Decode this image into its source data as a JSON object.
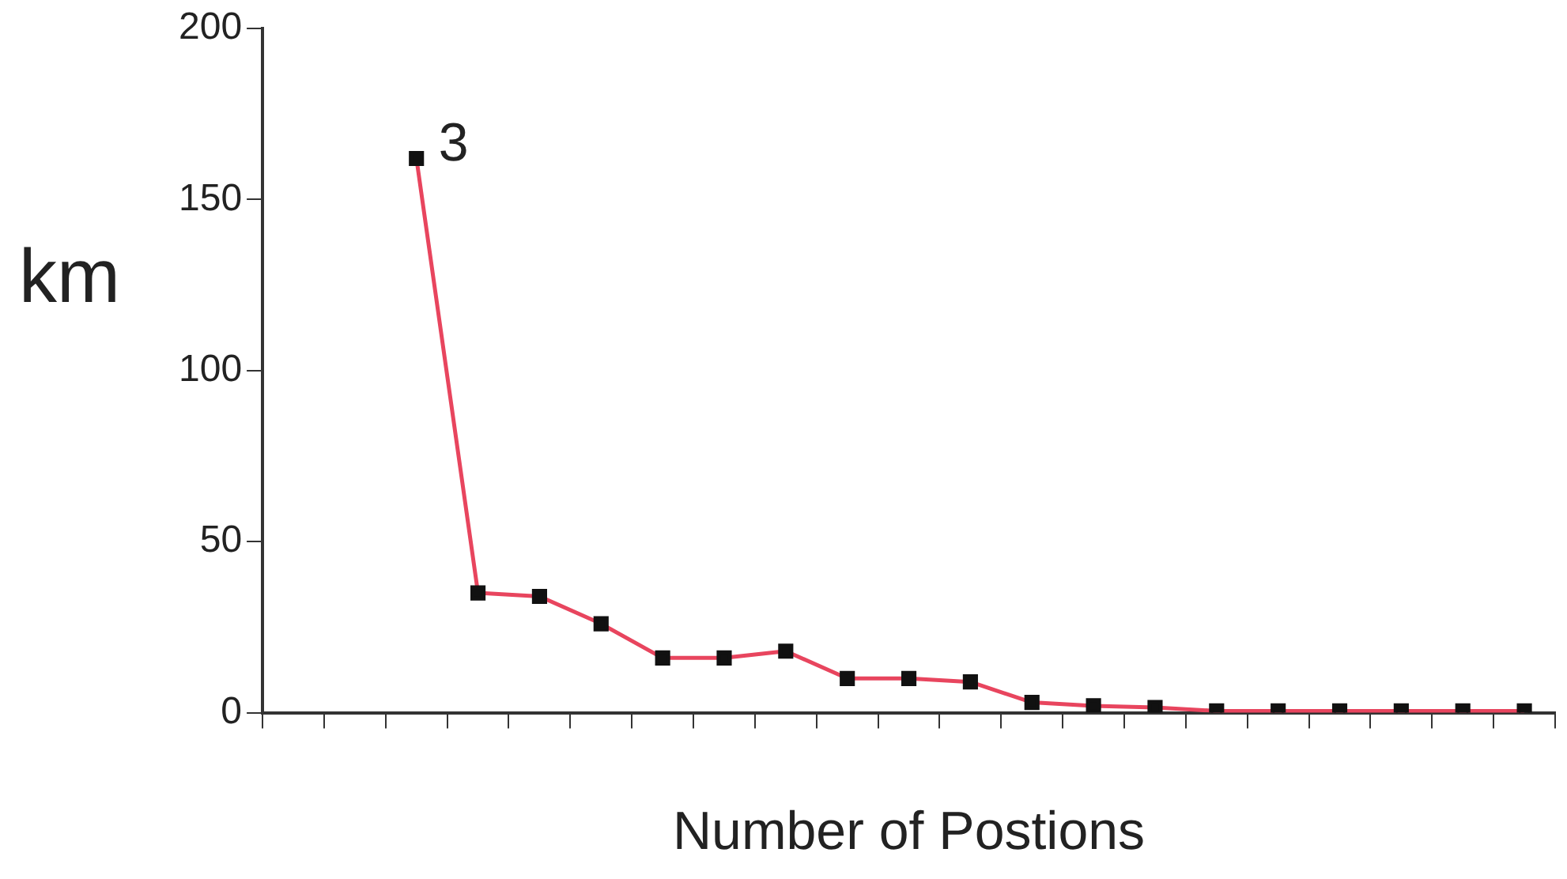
{
  "chart_data": {
    "type": "line",
    "xlabel": "Number of Postions",
    "ylabel": "km",
    "categories": [
      null,
      null,
      null,
      null,
      null,
      null,
      null,
      null,
      null,
      null,
      null,
      null,
      null,
      null,
      null,
      null,
      null,
      null,
      null,
      null,
      null
    ],
    "series": [
      {
        "color": "#e8455e",
        "values": [
          null,
          null,
          162,
          35,
          34,
          26,
          16,
          16,
          18,
          10,
          10,
          9,
          3,
          2,
          1.5,
          0.5,
          0.5,
          0.5,
          0.5,
          0.5,
          0.5
        ]
      }
    ],
    "ylim": [
      0,
      200
    ],
    "yticks": [
      0,
      50,
      100,
      150,
      200
    ],
    "grid": false,
    "legend": false,
    "marker": "square",
    "line_style": "solid",
    "annotations": [
      "3"
    ]
  }
}
